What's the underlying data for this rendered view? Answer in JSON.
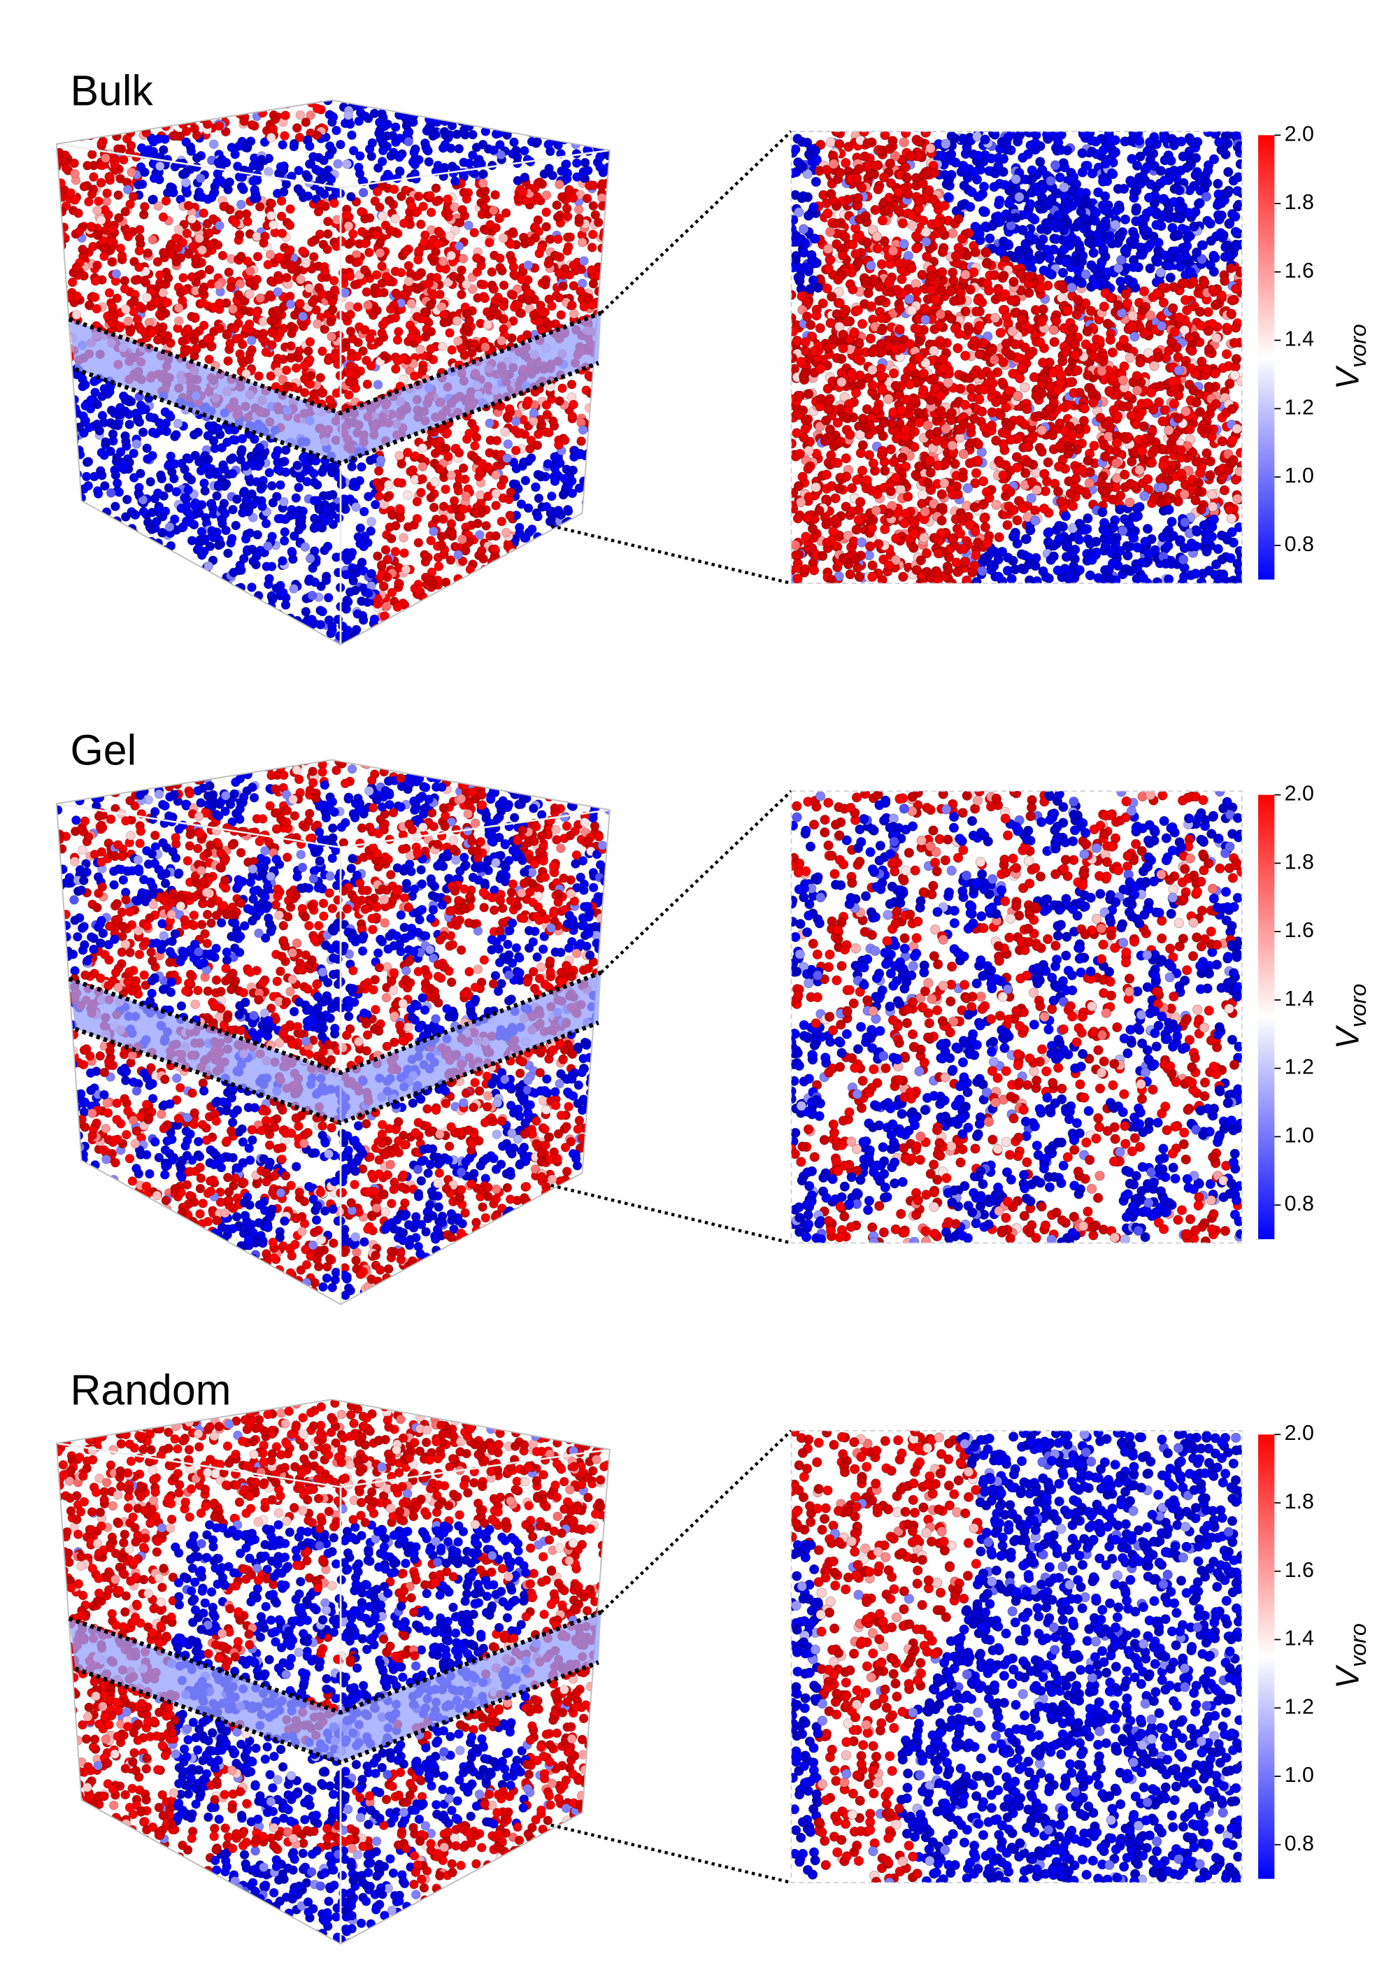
{
  "panels": [
    {
      "title": "Bulk"
    },
    {
      "title": "Gel"
    },
    {
      "title": "Random"
    }
  ],
  "colorbar": {
    "label": "V",
    "label_subscript": "voro",
    "lim": [
      0.7,
      2.0
    ],
    "ticks": [
      {
        "value": 2,
        "label": "2.0"
      },
      1.8,
      1.6,
      1.4,
      1.2,
      {
        "value": 1,
        "label": "1.0"
      },
      0.8
    ],
    "colormap": [
      "#0000ff",
      "#ffffff",
      "#ff0000"
    ]
  }
}
